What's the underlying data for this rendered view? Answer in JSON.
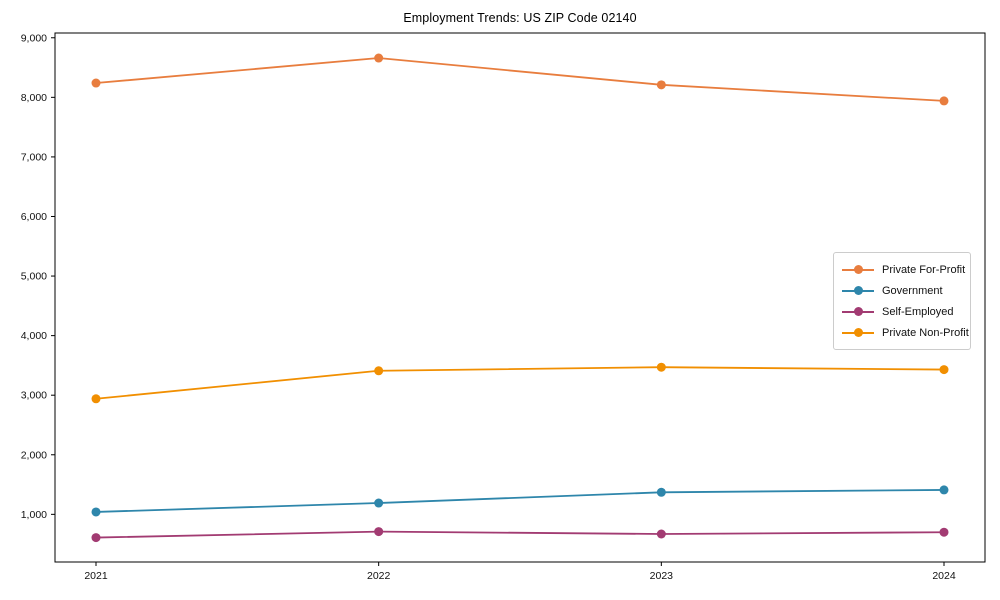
{
  "chart_data": {
    "type": "line",
    "title": "Employment Trends: US ZIP Code 02140",
    "x": [
      "2021",
      "2022",
      "2023",
      "2024"
    ],
    "series": [
      {
        "name": "Private For-Profit",
        "color": "#E87D3E",
        "values": [
          8240,
          8660,
          8210,
          7940
        ]
      },
      {
        "name": "Government",
        "color": "#2E86AB",
        "values": [
          1040,
          1190,
          1370,
          1410
        ]
      },
      {
        "name": "Self-Employed",
        "color": "#A23B72",
        "values": [
          610,
          710,
          670,
          700
        ]
      },
      {
        "name": "Private Non-Profit",
        "color": "#F18F01",
        "values": [
          2940,
          3410,
          3470,
          3430
        ]
      }
    ],
    "xlabel": "",
    "ylabel": "",
    "ylim": [
      200,
      9080
    ],
    "y_ticks": [
      1000,
      2000,
      3000,
      4000,
      5000,
      6000,
      7000,
      8000,
      9000
    ],
    "y_tick_labels": [
      "1,000",
      "2,000",
      "3,000",
      "4,000",
      "5,000",
      "6,000",
      "7,000",
      "8,000",
      "9,000"
    ],
    "grid": false,
    "legend_position": "center-right",
    "marker": "circle"
  }
}
